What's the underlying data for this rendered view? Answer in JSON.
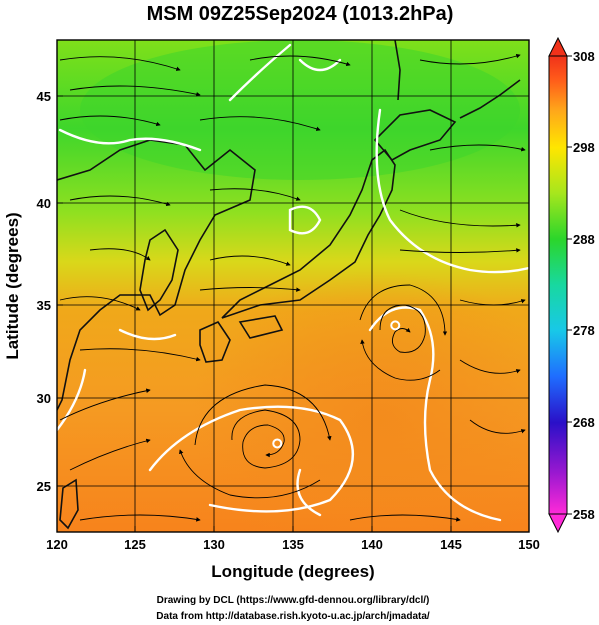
{
  "title": "MSM 09Z25Sep2024 (1013.2hPa)",
  "xlabel": "Longitude (degrees)",
  "ylabel": "Latitude  (degrees)",
  "x_ticks": [
    "120",
    "125",
    "130",
    "135",
    "140",
    "145",
    "150"
  ],
  "y_ticks": [
    "25",
    "30",
    "35",
    "40",
    "45"
  ],
  "colorbar": {
    "ticks": [
      "308",
      "298",
      "288",
      "278",
      "268",
      "258"
    ],
    "range": [
      258,
      308
    ],
    "colors": [
      "#ff2ad8",
      "#9a18d0",
      "#2a10c8",
      "#1f6dff",
      "#18c8e8",
      "#18d8a0",
      "#2bd62b",
      "#a6e61d",
      "#ffe600",
      "#ffa81a",
      "#ff5a1a",
      "#f0321a"
    ]
  },
  "credits": {
    "line1": "Drawing by DCL (https://www.gfd-dennou.org/library/dcl/)",
    "line2": "Data from http://database.rish.kyoto-u.ac.jp/arch/jmadata/"
  },
  "map_data": {
    "lon_range": [
      120,
      150
    ],
    "lat_range": [
      23,
      48
    ],
    "fields": [
      "temperature (K)",
      "wind streamlines",
      "land boundaries"
    ],
    "cyclones": [
      {
        "lon": 134,
        "lat": 27.5
      },
      {
        "lon": 141.5,
        "lat": 33.5
      }
    ]
  }
}
